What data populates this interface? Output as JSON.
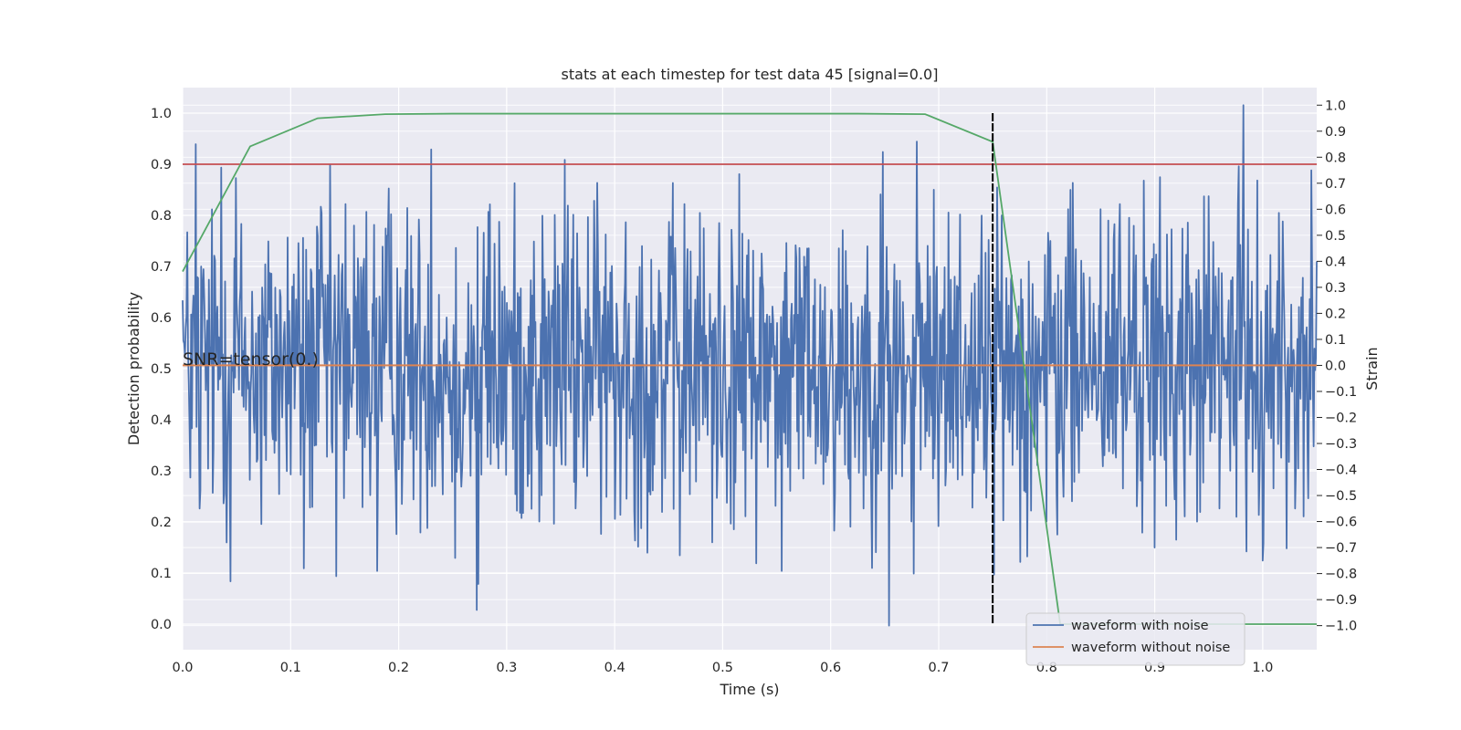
{
  "chart_data": {
    "type": "line",
    "title": "stats at each timestep for test data 45 [signal=0.0]",
    "xlabel": "Time (s)",
    "ylabel": "Detection probability",
    "ylabel_right": "Strain",
    "xlim": [
      0.0,
      1.05
    ],
    "ylim": [
      -0.05,
      1.05
    ],
    "ylim_right": [
      -1.0925,
      1.0675
    ],
    "x_ticks": [
      0.0,
      0.1,
      0.2,
      0.3,
      0.4,
      0.5,
      0.6,
      0.7,
      0.8,
      0.9,
      1.0
    ],
    "x_tick_labels": [
      "0.0",
      "0.1",
      "0.2",
      "0.3",
      "0.4",
      "0.5",
      "0.6",
      "0.7",
      "0.8",
      "0.9",
      "1.0"
    ],
    "y_ticks": [
      0.0,
      0.1,
      0.2,
      0.3,
      0.4,
      0.5,
      0.6,
      0.7,
      0.8,
      0.9,
      1.0
    ],
    "y_tick_labels": [
      "0.0",
      "0.1",
      "0.2",
      "0.3",
      "0.4",
      "0.5",
      "0.6",
      "0.7",
      "0.8",
      "0.9",
      "1.0"
    ],
    "y_right_ticks": [
      -1.0,
      -0.9,
      -0.8,
      -0.7,
      -0.6,
      -0.5,
      -0.4,
      -0.3,
      -0.2,
      -0.1,
      0.0,
      0.1,
      0.2,
      0.3,
      0.4,
      0.5,
      0.6,
      0.7,
      0.8,
      0.9,
      1.0
    ],
    "y_right_tick_labels": [
      "−1.0",
      "−0.9",
      "−0.8",
      "−0.7",
      "−0.6",
      "−0.5",
      "−0.4",
      "−0.3",
      "−0.2",
      "−0.1",
      "0.0",
      "0.1",
      "0.2",
      "0.3",
      "0.4",
      "0.5",
      "0.6",
      "0.7",
      "0.8",
      "0.9",
      "1.0"
    ],
    "grid": true,
    "legend_position": "lower-right",
    "annotation": "SNR=tensor(0.)",
    "threshold_line": {
      "y": 0.9,
      "color": "#c44e52"
    },
    "vertical_marker": {
      "x": 0.75,
      "y_from": 0.0,
      "y_to": 1.0,
      "color": "#000000",
      "style": "dashed"
    },
    "detection_series": {
      "color": "#55a868",
      "axis": "left",
      "x": [
        0.0,
        0.0625,
        0.125,
        0.1875,
        0.25,
        0.3125,
        0.375,
        0.4375,
        0.5,
        0.5625,
        0.625,
        0.6875,
        0.75,
        0.8125,
        0.875,
        0.9375,
        1.0,
        1.05
      ],
      "y": [
        0.69,
        0.935,
        0.99,
        0.998,
        0.999,
        0.999,
        0.999,
        0.999,
        0.999,
        0.999,
        0.999,
        0.998,
        0.944,
        0.0,
        0.0,
        0.0,
        0.0,
        0.0
      ]
    },
    "series": [
      {
        "name": "waveform with noise",
        "color": "#4c72b0",
        "axis": "right",
        "noise_sigma": 0.3,
        "peaks": [
          [
            0.0,
            0.25
          ],
          [
            0.012,
            0.85
          ],
          [
            0.016,
            -0.55
          ],
          [
            0.036,
            0.76
          ],
          [
            0.044,
            -0.83
          ],
          [
            0.049,
            0.72
          ],
          [
            0.073,
            -0.61
          ],
          [
            0.103,
            0.35
          ],
          [
            0.112,
            -0.78
          ],
          [
            0.128,
            0.61
          ],
          [
            0.142,
            -0.81
          ],
          [
            0.151,
            0.62
          ],
          [
            0.17,
            0.59
          ],
          [
            0.18,
            -0.79
          ],
          [
            0.191,
            0.68
          ],
          [
            0.23,
            0.83
          ],
          [
            0.252,
            -0.74
          ],
          [
            0.272,
            -0.94
          ],
          [
            0.274,
            -0.84
          ],
          [
            0.283,
            0.59
          ],
          [
            0.33,
            -0.6
          ],
          [
            0.354,
            0.79
          ],
          [
            0.375,
            0.57
          ],
          [
            0.4,
            -0.59
          ],
          [
            0.41,
            0.55
          ],
          [
            0.43,
            -0.72
          ],
          [
            0.46,
            -0.73
          ],
          [
            0.49,
            -0.68
          ],
          [
            0.51,
            -0.63
          ],
          [
            0.555,
            -0.79
          ],
          [
            0.58,
            0.45
          ],
          [
            0.618,
            -0.62
          ],
          [
            0.648,
            0.82
          ],
          [
            0.654,
            -1.0
          ],
          [
            0.675,
            -0.6
          ],
          [
            0.677,
            -0.8
          ],
          [
            0.68,
            0.86
          ],
          [
            0.72,
            0.58
          ],
          [
            0.742,
            -0.4
          ],
          [
            0.8,
            -0.6
          ],
          [
            0.81,
            -0.65
          ],
          [
            0.82,
            0.6
          ],
          [
            0.85,
            0.6
          ],
          [
            0.868,
            0.62
          ],
          [
            0.89,
            0.71
          ],
          [
            0.9,
            -0.7
          ],
          [
            0.92,
            -0.67
          ],
          [
            0.95,
            0.65
          ],
          [
            0.96,
            -0.55
          ],
          [
            0.982,
            1.0
          ],
          [
            1.0,
            -0.75
          ],
          [
            1.03,
            -0.55
          ],
          [
            1.05,
            0.4
          ]
        ]
      },
      {
        "name": "waveform without noise",
        "color": "#dd8452",
        "axis": "right",
        "x": [
          0.0,
          1.05
        ],
        "y": [
          0.0,
          0.0
        ]
      }
    ]
  }
}
